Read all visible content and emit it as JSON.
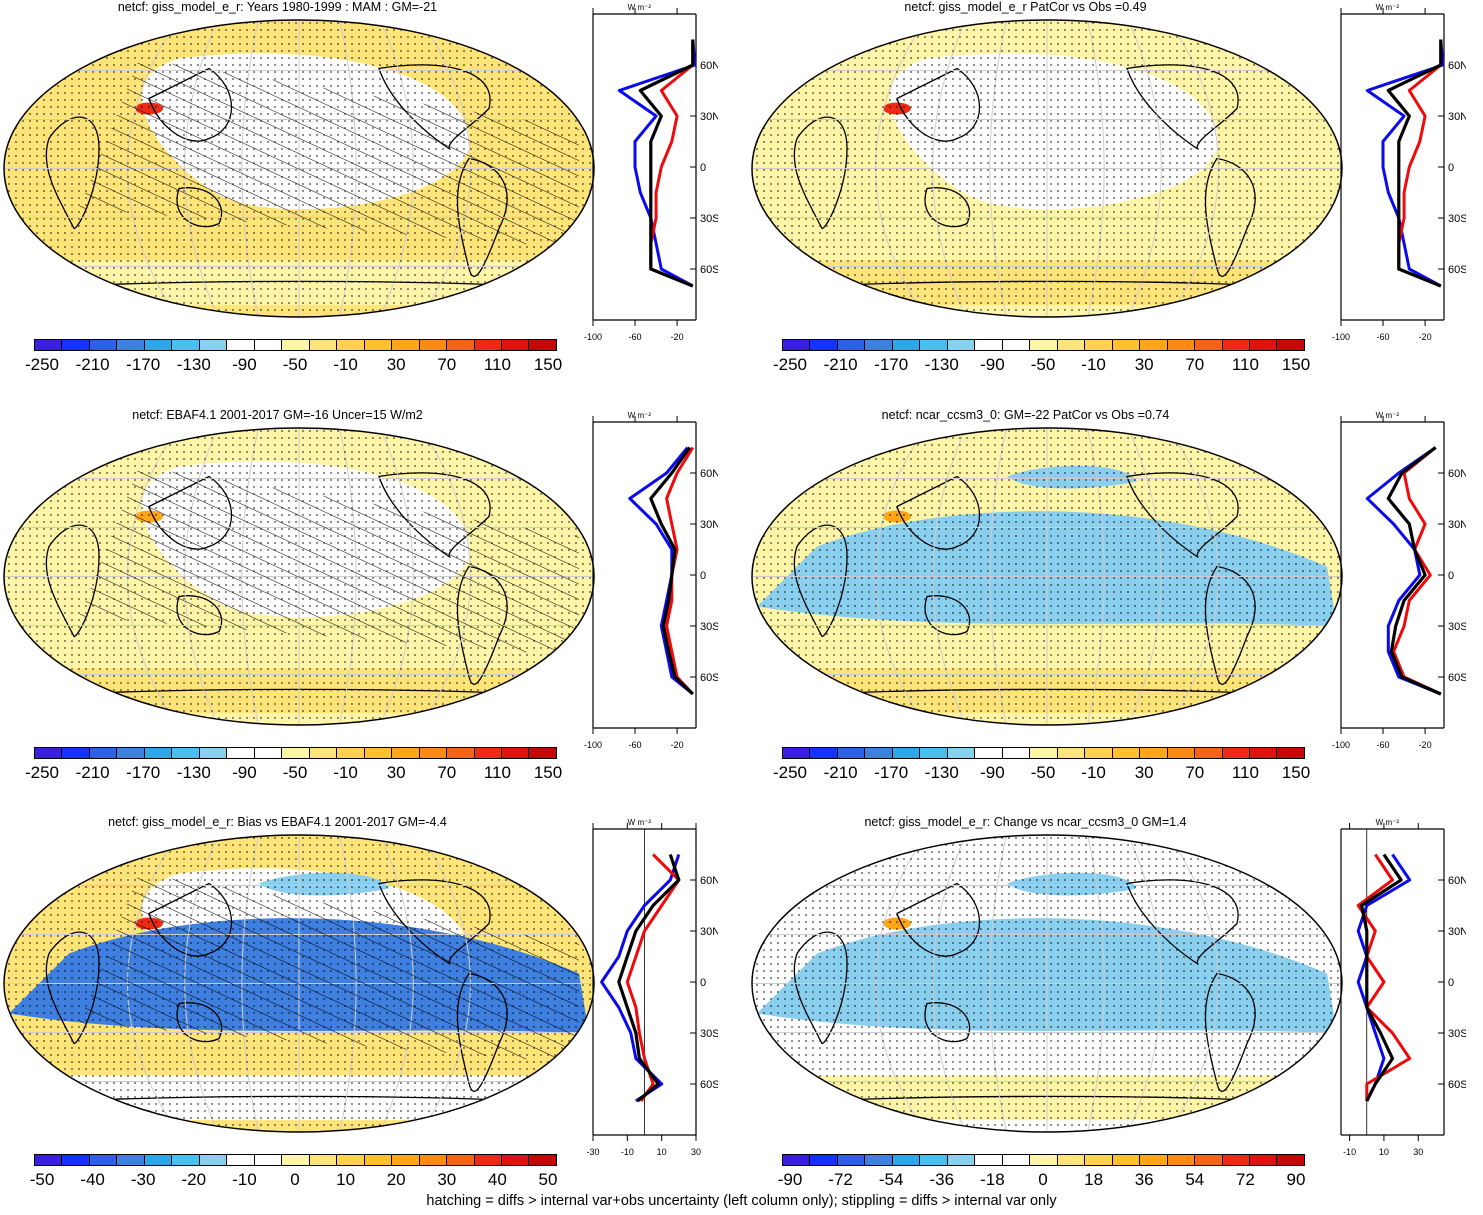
{
  "panels": [
    {
      "id": "p1",
      "title": "netcf: giss_model_e_r: Years 1980-1999 : MAM : GM=-21",
      "hatching": true,
      "colorbar": {
        "colors": [
          "#3a1fe0",
          "#1530ff",
          "#2f5fe8",
          "#3e7fe0",
          "#2ba8ec",
          "#47bfef",
          "#8ad0ee",
          "#ffffff",
          "#ffffff",
          "#fff5a8",
          "#ffe47a",
          "#ffd24e",
          "#ffc02b",
          "#ffa516",
          "#ff8a12",
          "#f76315",
          "#ee2a14",
          "#dd1212",
          "#c40707"
        ],
        "labels": [
          "-250",
          "-210",
          "-170",
          "-130",
          "-90",
          "-50",
          "-10",
          "30",
          "70",
          "110",
          "150"
        ],
        "label_index": [
          0,
          2,
          4,
          6,
          8,
          10,
          12,
          14,
          16,
          18,
          20
        ]
      },
      "zonal": {
        "xaxis_ticks": [
          "-100",
          "-60",
          "-20"
        ],
        "xlim": [
          -100,
          -2
        ],
        "units": "W m⁻²",
        "lat_labels": [
          "60N",
          "30N",
          "0",
          "30S",
          "60S"
        ],
        "zero_line": false
      }
    },
    {
      "id": "p2",
      "title": "netcf: giss_model_e_r PatCor vs Obs =0.49",
      "hatching": false,
      "colorbar": {
        "colors": [
          "#3a1fe0",
          "#1530ff",
          "#2f5fe8",
          "#3e7fe0",
          "#2ba8ec",
          "#47bfef",
          "#8ad0ee",
          "#ffffff",
          "#ffffff",
          "#fff5a8",
          "#ffe47a",
          "#ffd24e",
          "#ffc02b",
          "#ffa516",
          "#ff8a12",
          "#f76315",
          "#ee2a14",
          "#dd1212",
          "#c40707"
        ],
        "labels": [
          "-250",
          "-210",
          "-170",
          "-130",
          "-90",
          "-50",
          "-10",
          "30",
          "70",
          "110",
          "150"
        ],
        "label_index": [
          0,
          2,
          4,
          6,
          8,
          10,
          12,
          14,
          16,
          18,
          20
        ]
      },
      "zonal": {
        "xaxis_ticks": [
          "-100",
          "-60",
          "-20"
        ],
        "xlim": [
          -100,
          -2
        ],
        "units": "W m⁻²",
        "lat_labels": [
          "60N",
          "30N",
          "0",
          "30S",
          "60S"
        ],
        "zero_line": false
      }
    },
    {
      "id": "p3",
      "title": "netcf: EBAF4.1 2001-2017 GM=-16 Uncer=15 W/m2",
      "hatching": true,
      "colorbar": {
        "colors": [
          "#3a1fe0",
          "#1530ff",
          "#2f5fe8",
          "#3e7fe0",
          "#2ba8ec",
          "#47bfef",
          "#8ad0ee",
          "#ffffff",
          "#ffffff",
          "#fff5a8",
          "#ffe47a",
          "#ffd24e",
          "#ffc02b",
          "#ffa516",
          "#ff8a12",
          "#f76315",
          "#ee2a14",
          "#dd1212",
          "#c40707"
        ],
        "labels": [
          "-250",
          "-210",
          "-170",
          "-130",
          "-90",
          "-50",
          "-10",
          "30",
          "70",
          "110",
          "150"
        ],
        "label_index": [
          0,
          2,
          4,
          6,
          8,
          10,
          12,
          14,
          16,
          18,
          20
        ]
      },
      "zonal": {
        "xaxis_ticks": [
          "-100",
          "-60",
          "-20"
        ],
        "xlim": [
          -100,
          -2
        ],
        "units": "W m⁻²",
        "lat_labels": [
          "60N",
          "30N",
          "0",
          "30S",
          "60S"
        ],
        "zero_line": false
      }
    },
    {
      "id": "p4",
      "title": "netcf: ncar_ccsm3_0: GM=-22 PatCor vs Obs =0.74",
      "hatching": false,
      "colorbar": {
        "colors": [
          "#3a1fe0",
          "#1530ff",
          "#2f5fe8",
          "#3e7fe0",
          "#2ba8ec",
          "#47bfef",
          "#8ad0ee",
          "#ffffff",
          "#ffffff",
          "#fff5a8",
          "#ffe47a",
          "#ffd24e",
          "#ffc02b",
          "#ffa516",
          "#ff8a12",
          "#f76315",
          "#ee2a14",
          "#dd1212",
          "#c40707"
        ],
        "labels": [
          "-250",
          "-210",
          "-170",
          "-130",
          "-90",
          "-50",
          "-10",
          "30",
          "70",
          "110",
          "150"
        ],
        "label_index": [
          0,
          2,
          4,
          6,
          8,
          10,
          12,
          14,
          16,
          18,
          20
        ]
      },
      "zonal": {
        "xaxis_ticks": [
          "-100",
          "-60",
          "-20"
        ],
        "xlim": [
          -100,
          -2
        ],
        "units": "W m⁻²",
        "lat_labels": [
          "60N",
          "30N",
          "0",
          "30S",
          "60S"
        ],
        "zero_line": false
      }
    },
    {
      "id": "p5",
      "title": "netcf: giss_model_e_r: Bias vs EBAF4.1 2001-2017 GM=-4.4",
      "hatching": true,
      "colorbar": {
        "colors": [
          "#3a1fe0",
          "#1530ff",
          "#2f5fe8",
          "#3e7fe0",
          "#2ba8ec",
          "#47bfef",
          "#8ad0ee",
          "#ffffff",
          "#ffffff",
          "#fff5a8",
          "#ffe47a",
          "#ffd24e",
          "#ffc02b",
          "#ffa516",
          "#ff8a12",
          "#f76315",
          "#ee2a14",
          "#dd1212",
          "#c40707"
        ],
        "labels": [
          "-50",
          "-40",
          "-30",
          "-20",
          "-10",
          "0",
          "10",
          "20",
          "30",
          "40",
          "50"
        ],
        "label_index": [
          0,
          2,
          4,
          6,
          8,
          10,
          12,
          14,
          16,
          18,
          20
        ]
      },
      "zonal": {
        "xaxis_ticks": [
          "-30",
          "-10",
          "10",
          "30"
        ],
        "xlim": [
          -30,
          30
        ],
        "units": "W m⁻²",
        "lat_labels": [
          "60N",
          "30N",
          "0",
          "30S",
          "60S"
        ],
        "zero_line": true
      }
    },
    {
      "id": "p6",
      "title": "netcf: giss_model_e_r: Change vs ncar_ccsm3_0 GM=1.4",
      "hatching": false,
      "colorbar": {
        "colors": [
          "#3a1fe0",
          "#1530ff",
          "#2f5fe8",
          "#3e7fe0",
          "#2ba8ec",
          "#47bfef",
          "#8ad0ee",
          "#ffffff",
          "#ffffff",
          "#fff5a8",
          "#ffe47a",
          "#ffd24e",
          "#ffc02b",
          "#ffa516",
          "#ff8a12",
          "#f76315",
          "#ee2a14",
          "#dd1212",
          "#c40707"
        ],
        "labels": [
          "-90",
          "-72",
          "-54",
          "-36",
          "-18",
          "0",
          "18",
          "36",
          "54",
          "72",
          "90"
        ],
        "label_index": [
          0,
          2,
          4,
          6,
          8,
          10,
          12,
          14,
          16,
          18,
          20
        ]
      },
      "zonal": {
        "xaxis_ticks": [
          "-10",
          "10",
          "30"
        ],
        "xlim": [
          -15,
          45
        ],
        "units": "W m⁻²",
        "lat_labels": [
          "60N",
          "30N",
          "0",
          "30S",
          "60S"
        ],
        "zero_line": true
      }
    }
  ],
  "footnote": "hatching = diffs > internal var+obs uncertainty (left column only); stippling = diffs > internal var only",
  "chart_data": [
    {
      "type": "heatmap",
      "title": "netcf: giss_model_e_r: Years 1980-1999 : MAM : GM=-21",
      "zonal_mean": {
        "lat": [
          75,
          60,
          45,
          30,
          15,
          0,
          -15,
          -30,
          -45,
          -60,
          -70
        ],
        "series": [
          {
            "values": [
              -5,
              -3,
              -75,
              -40,
              -60,
              -60,
              -55,
              -45,
              -40,
              -35,
              -5
            ]
          },
          {
            "values": [
              -5,
              -5,
              -35,
              -20,
              -25,
              -35,
              -40,
              -40,
              -45,
              -45,
              -5
            ]
          },
          {
            "values": [
              -5,
              -5,
              -55,
              -35,
              -45,
              -45,
              -45,
              -45,
              -45,
              -45,
              -5
            ]
          }
        ]
      }
    },
    {
      "type": "heatmap",
      "title": "netcf: giss_model_e_r PatCor vs Obs =0.49",
      "zonal_mean": {
        "lat": [
          75,
          60,
          45,
          30,
          15,
          0,
          -15,
          -30,
          -45,
          -60,
          -70
        ],
        "series": [
          {
            "values": [
              -5,
              -3,
              -75,
              -40,
              -60,
              -60,
              -55,
              -45,
              -40,
              -35,
              -5
            ]
          },
          {
            "values": [
              -5,
              -5,
              -35,
              -20,
              -25,
              -35,
              -40,
              -40,
              -45,
              -45,
              -5
            ]
          },
          {
            "values": [
              -5,
              -5,
              -55,
              -35,
              -45,
              -45,
              -45,
              -45,
              -45,
              -45,
              -5
            ]
          }
        ]
      }
    },
    {
      "type": "heatmap",
      "title": "netcf: EBAF4.1 2001-2017 GM=-16 Uncer=15 W/m2",
      "zonal_mean": {
        "lat": [
          75,
          60,
          45,
          30,
          15,
          0,
          -15,
          -30,
          -45,
          -60,
          -70
        ],
        "series": [
          {
            "values": [
              -10,
              -30,
              -65,
              -40,
              -25,
              -25,
              -30,
              -35,
              -30,
              -25,
              -5
            ]
          },
          {
            "values": [
              -5,
              -20,
              -30,
              -25,
              -20,
              -25,
              -25,
              -30,
              -25,
              -20,
              -5
            ]
          },
          {
            "values": [
              -8,
              -25,
              -45,
              -35,
              -22,
              -25,
              -28,
              -33,
              -28,
              -22,
              -5
            ]
          }
        ]
      }
    },
    {
      "type": "heatmap",
      "title": "netcf: ncar_ccsm3_0: GM=-22 PatCor vs Obs =0.74",
      "zonal_mean": {
        "lat": [
          75,
          60,
          45,
          30,
          15,
          0,
          -15,
          -30,
          -45,
          -60,
          -70
        ],
        "series": [
          {
            "values": [
              -10,
              -45,
              -75,
              -50,
              -30,
              -25,
              -45,
              -55,
              -55,
              -45,
              -5
            ]
          },
          {
            "values": [
              -10,
              -40,
              -35,
              -20,
              -30,
              -15,
              -35,
              -40,
              -50,
              -40,
              -5
            ]
          },
          {
            "values": [
              -10,
              -42,
              -55,
              -35,
              -30,
              -20,
              -40,
              -48,
              -52,
              -42,
              -5
            ]
          }
        ]
      }
    },
    {
      "type": "heatmap",
      "title": "netcf: giss_model_e_r: Bias vs EBAF4.1 2001-2017 GM=-4.4",
      "zonal_mean": {
        "lat": [
          75,
          60,
          45,
          30,
          15,
          0,
          -15,
          -30,
          -45,
          -60,
          -70
        ],
        "series": [
          {
            "values": [
              20,
              15,
              0,
              -10,
              -15,
              -25,
              -15,
              -8,
              -5,
              10,
              -5
            ]
          },
          {
            "values": [
              5,
              20,
              10,
              0,
              -5,
              -10,
              -5,
              -3,
              0,
              5,
              -2
            ]
          },
          {
            "values": [
              15,
              20,
              5,
              -5,
              -10,
              -15,
              -10,
              -5,
              -3,
              8,
              -4
            ]
          }
        ]
      }
    },
    {
      "type": "heatmap",
      "title": "netcf: giss_model_e_r: Change vs ncar_ccsm3_0 GM=1.4",
      "zonal_mean": {
        "lat": [
          75,
          60,
          45,
          30,
          15,
          0,
          -15,
          -30,
          -45,
          -60,
          -70
        ],
        "series": [
          {
            "values": [
              15,
              25,
              0,
              -5,
              0,
              -5,
              0,
              5,
              10,
              5,
              0
            ]
          },
          {
            "values": [
              5,
              15,
              -5,
              5,
              0,
              10,
              0,
              15,
              25,
              0,
              0
            ]
          },
          {
            "values": [
              10,
              20,
              -3,
              0,
              0,
              0,
              0,
              8,
              15,
              5,
              0
            ]
          }
        ]
      }
    }
  ]
}
